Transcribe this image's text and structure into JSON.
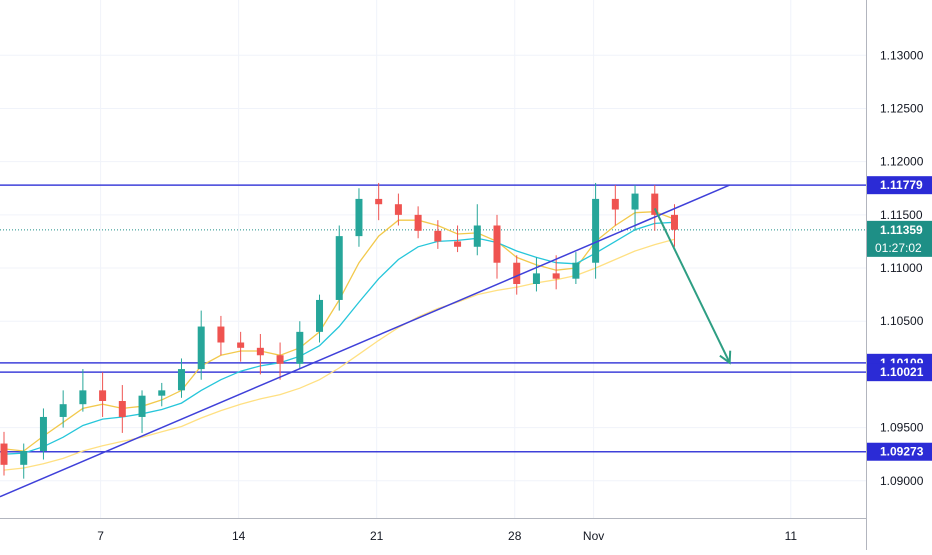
{
  "colors": {
    "background": "#ffffff",
    "grid": "#f0f3fa",
    "axis_line": "#b2b5be",
    "axis_text": "#131722",
    "up_candle": "#26a69a",
    "down_candle": "#ef5350",
    "ma_fast": "#f2c94c",
    "ma_mid": "#26c6da",
    "ma_slow": "#ffe082",
    "level_lines": "#3f40d9",
    "trendline": "#3f40d9",
    "arrow": "#2e9e83",
    "current_price_line": "#1e8f86",
    "price_label_bg": "#2b2bd6",
    "current_price_bg": "#1e8f86"
  },
  "chart_data": {
    "type": "candlestick",
    "title": "",
    "xlabel": "",
    "ylabel": "",
    "ylim": [
      1.0865,
      1.1352
    ],
    "y_ticks": [
      "1.09000",
      "1.09500",
      "1.10500",
      "1.11000",
      "1.11500",
      "1.12000",
      "1.12500",
      "1.13000"
    ],
    "x_ticks": [
      "7",
      "14",
      "21",
      "28",
      "Nov",
      "11"
    ],
    "horizontal_levels": [
      {
        "label": "1.11779",
        "value": 1.11779
      },
      {
        "label": "1.10109",
        "value": 1.10109
      },
      {
        "label": "1.10021",
        "value": 1.10021
      },
      {
        "label": "1.09273",
        "value": 1.09273
      }
    ],
    "current_price": {
      "label": "1.11359",
      "value": 1.11359,
      "countdown": "01:27:02"
    },
    "trendline": {
      "from": {
        "date": "Oct 2",
        "price": 1.0885
      },
      "to": {
        "date": "Nov 8",
        "price": 1.1178
      }
    },
    "projection_arrow": {
      "from": {
        "date": "Nov 4",
        "price": 1.1156
      },
      "to": {
        "date": "Nov 8",
        "price": 1.1011
      }
    },
    "candles": [
      {
        "date": "Oct 2",
        "o": 1.0935,
        "h": 1.0946,
        "l": 1.0905,
        "c": 1.0915
      },
      {
        "date": "Oct 3",
        "o": 1.0915,
        "h": 1.0935,
        "l": 1.0902,
        "c": 1.0928
      },
      {
        "date": "Oct 4",
        "o": 1.0928,
        "h": 1.0968,
        "l": 1.092,
        "c": 1.096
      },
      {
        "date": "Oct 5",
        "o": 1.096,
        "h": 1.0985,
        "l": 1.095,
        "c": 1.0972
      },
      {
        "date": "Oct 6",
        "o": 1.0972,
        "h": 1.1005,
        "l": 1.0965,
        "c": 1.0985
      },
      {
        "date": "Oct 7",
        "o": 1.0985,
        "h": 1.1002,
        "l": 1.096,
        "c": 1.0975
      },
      {
        "date": "Oct 8",
        "o": 1.0975,
        "h": 1.099,
        "l": 1.0945,
        "c": 1.096
      },
      {
        "date": "Oct 9",
        "o": 1.096,
        "h": 1.0985,
        "l": 1.0945,
        "c": 1.098
      },
      {
        "date": "Oct 10",
        "o": 1.098,
        "h": 1.0992,
        "l": 1.097,
        "c": 1.0985
      },
      {
        "date": "Oct 11",
        "o": 1.0985,
        "h": 1.1015,
        "l": 1.0978,
        "c": 1.1005
      },
      {
        "date": "Oct 12",
        "o": 1.1005,
        "h": 1.106,
        "l": 1.0995,
        "c": 1.1045
      },
      {
        "date": "Oct 13",
        "o": 1.1045,
        "h": 1.1055,
        "l": 1.1018,
        "c": 1.103
      },
      {
        "date": "Oct 14",
        "o": 1.103,
        "h": 1.104,
        "l": 1.1012,
        "c": 1.1025
      },
      {
        "date": "Oct 15",
        "o": 1.1025,
        "h": 1.1038,
        "l": 1.1,
        "c": 1.1018
      },
      {
        "date": "Oct 16",
        "o": 1.1018,
        "h": 1.103,
        "l": 1.0995,
        "c": 1.101
      },
      {
        "date": "Oct 17",
        "o": 1.101,
        "h": 1.105,
        "l": 1.1005,
        "c": 1.104
      },
      {
        "date": "Oct 18",
        "o": 1.104,
        "h": 1.1075,
        "l": 1.103,
        "c": 1.107
      },
      {
        "date": "Oct 19",
        "o": 1.107,
        "h": 1.114,
        "l": 1.106,
        "c": 1.113
      },
      {
        "date": "Oct 20",
        "o": 1.113,
        "h": 1.1175,
        "l": 1.112,
        "c": 1.1165
      },
      {
        "date": "Oct 21",
        "o": 1.1165,
        "h": 1.118,
        "l": 1.1145,
        "c": 1.116
      },
      {
        "date": "Oct 22",
        "o": 1.116,
        "h": 1.117,
        "l": 1.114,
        "c": 1.115
      },
      {
        "date": "Oct 23",
        "o": 1.115,
        "h": 1.1158,
        "l": 1.1128,
        "c": 1.1135
      },
      {
        "date": "Oct 24",
        "o": 1.1135,
        "h": 1.1145,
        "l": 1.1118,
        "c": 1.1125
      },
      {
        "date": "Oct 25",
        "o": 1.1125,
        "h": 1.114,
        "l": 1.1115,
        "c": 1.112
      },
      {
        "date": "Oct 26",
        "o": 1.112,
        "h": 1.116,
        "l": 1.1112,
        "c": 1.114
      },
      {
        "date": "Oct 27",
        "o": 1.114,
        "h": 1.115,
        "l": 1.109,
        "c": 1.1105
      },
      {
        "date": "Oct 28",
        "o": 1.1105,
        "h": 1.1112,
        "l": 1.1075,
        "c": 1.1085
      },
      {
        "date": "Oct 29",
        "o": 1.1085,
        "h": 1.111,
        "l": 1.1078,
        "c": 1.1095
      },
      {
        "date": "Oct 30",
        "o": 1.1095,
        "h": 1.1112,
        "l": 1.108,
        "c": 1.109
      },
      {
        "date": "Oct 31",
        "o": 1.109,
        "h": 1.1115,
        "l": 1.1085,
        "c": 1.1105
      },
      {
        "date": "Nov 1",
        "o": 1.1105,
        "h": 1.118,
        "l": 1.109,
        "c": 1.1165
      },
      {
        "date": "Nov 2",
        "o": 1.1165,
        "h": 1.1178,
        "l": 1.114,
        "c": 1.1155
      },
      {
        "date": "Nov 3",
        "o": 1.1155,
        "h": 1.1178,
        "l": 1.1135,
        "c": 1.117
      },
      {
        "date": "Nov 4",
        "o": 1.117,
        "h": 1.1178,
        "l": 1.1135,
        "c": 1.115
      },
      {
        "date": "Nov 5",
        "o": 1.115,
        "h": 1.116,
        "l": 1.112,
        "c": 1.1136
      }
    ],
    "moving_averages": [
      {
        "values": [
          1.093,
          1.0928,
          1.0942,
          1.0955,
          1.0968,
          1.0972,
          1.0968,
          1.097,
          1.0976,
          1.0985,
          1.1008,
          1.1018,
          1.1022,
          1.1022,
          1.1018,
          1.1025,
          1.104,
          1.107,
          1.1105,
          1.113,
          1.1145,
          1.1145,
          1.114,
          1.1132,
          1.1133,
          1.1125,
          1.111,
          1.1103,
          1.1098,
          1.11,
          1.1125,
          1.114,
          1.1152,
          1.1153,
          1.1146
        ]
      },
      {
        "values": [
          1.0925,
          1.0926,
          1.0932,
          1.0941,
          1.0952,
          1.0958,
          1.096,
          1.0963,
          1.0967,
          1.0973,
          1.0985,
          1.0995,
          1.1003,
          1.1008,
          1.1011,
          1.1017,
          1.1027,
          1.1045,
          1.1068,
          1.109,
          1.1108,
          1.112,
          1.1125,
          1.1126,
          1.1128,
          1.1124,
          1.1116,
          1.111,
          1.1105,
          1.1104,
          1.1114,
          1.1125,
          1.1136,
          1.1142,
          1.1143
        ]
      },
      {
        "values": [
          1.091,
          1.0912,
          1.0916,
          1.0921,
          1.0928,
          1.0933,
          1.0937,
          1.0941,
          1.0946,
          1.0951,
          1.0959,
          1.0966,
          1.0972,
          1.0977,
          1.0981,
          1.0987,
          1.0995,
          1.1006,
          1.1019,
          1.1032,
          1.1044,
          1.1054,
          1.1062,
          1.1068,
          1.1075,
          1.1079,
          1.1082,
          1.1086,
          1.1089,
          1.1093,
          1.11,
          1.1108,
          1.1116,
          1.1122,
          1.1127
        ]
      }
    ]
  }
}
